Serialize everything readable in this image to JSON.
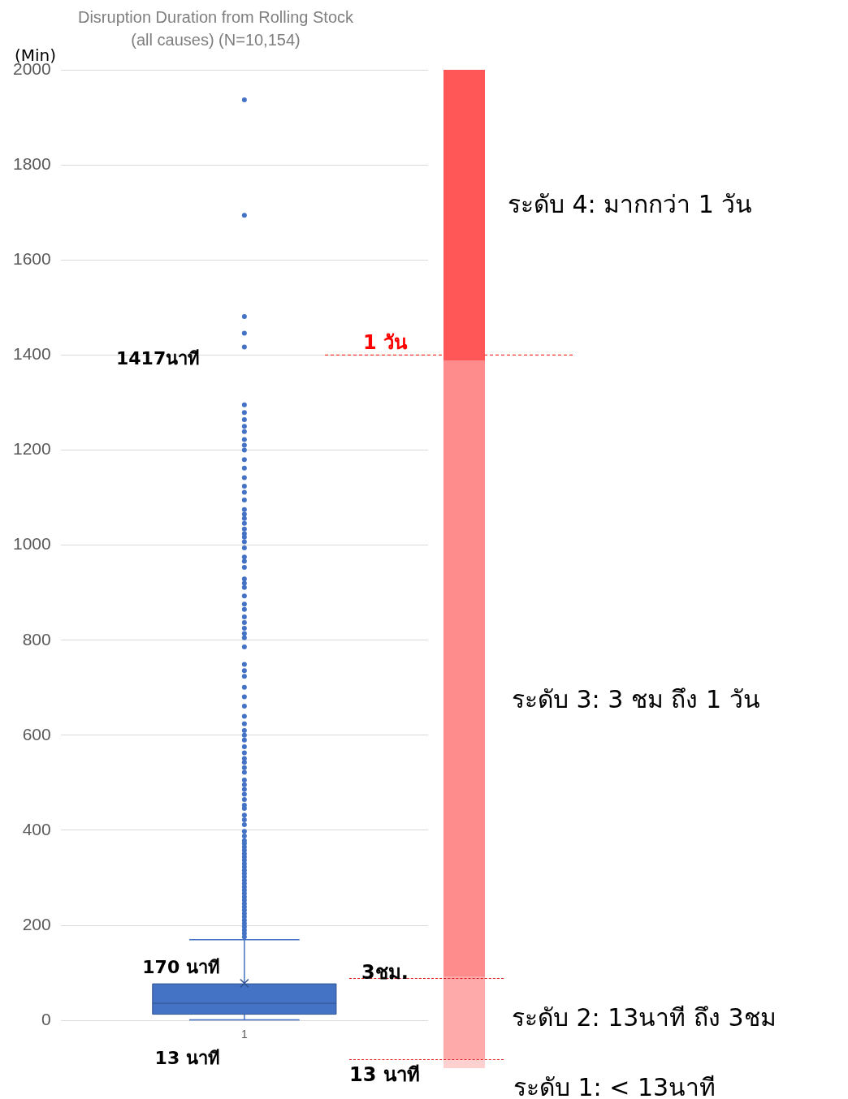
{
  "chart_data": {
    "type": "box",
    "title": "Disruption Duration from Rolling Stock",
    "subtitle": "(all causes) (N=10,154)",
    "ylabel": "(Min)",
    "categories": [
      "1"
    ],
    "color": "#4472c4",
    "boxes": [
      {
        "low": 1,
        "q1": 13,
        "median": 36,
        "q3": 77,
        "high": 170,
        "mean": 78,
        "outliers": [
          1937,
          1694,
          1481,
          1446,
          1417,
          1295,
          1279,
          1264,
          1250,
          1239,
          1222,
          1210,
          1200,
          1180,
          1162,
          1142,
          1124,
          1111,
          1095,
          1075,
          1065,
          1056,
          1046,
          1034,
          1024,
          1017,
          1007,
          994,
          975,
          966,
          953,
          929,
          920,
          911,
          893,
          876,
          865,
          849,
          837,
          825,
          814,
          805,
          786,
          749,
          736,
          724,
          701,
          681,
          661,
          640,
          624,
          610,
          600,
          590,
          576,
          563,
          551,
          543,
          532,
          522,
          506,
          496,
          486,
          476,
          465,
          453,
          446,
          432,
          422,
          412,
          398,
          388,
          378,
          372,
          365,
          358,
          351,
          344,
          337,
          330,
          323,
          316,
          309,
          302,
          295,
          288,
          281,
          274,
          267,
          260,
          253,
          246,
          239,
          232,
          225,
          218,
          211,
          204,
          197,
          190,
          183,
          176
        ]
      }
    ],
    "ylim": [
      0,
      2000
    ],
    "yticks": [
      0,
      200,
      400,
      600,
      800,
      1000,
      1200,
      1400,
      1600,
      1800,
      2000
    ],
    "grid": "y",
    "ref_lines": [
      {
        "axis": "y",
        "value": 1400,
        "label": "1 วัน",
        "color": "#ff0000",
        "line_style": "dashed"
      }
    ],
    "legend": false,
    "marker": "circle",
    "annotations": [
      "1417นาที",
      {
        "text": "170 นาที",
        "x": "1",
        "y": 170
      },
      {
        "text": "13 นาที",
        "x": "1",
        "y": 13
      },
      "3ชม.",
      "13 นาที",
      "ระดับ 4: มากกว่า 1 วัน",
      "ระดับ 3: 3 ชม ถึง 1 วัน",
      "ระดับ 2: 13นาที ถึง 3ชม",
      "ระดับ 1: < 13นาที"
    ]
  }
}
